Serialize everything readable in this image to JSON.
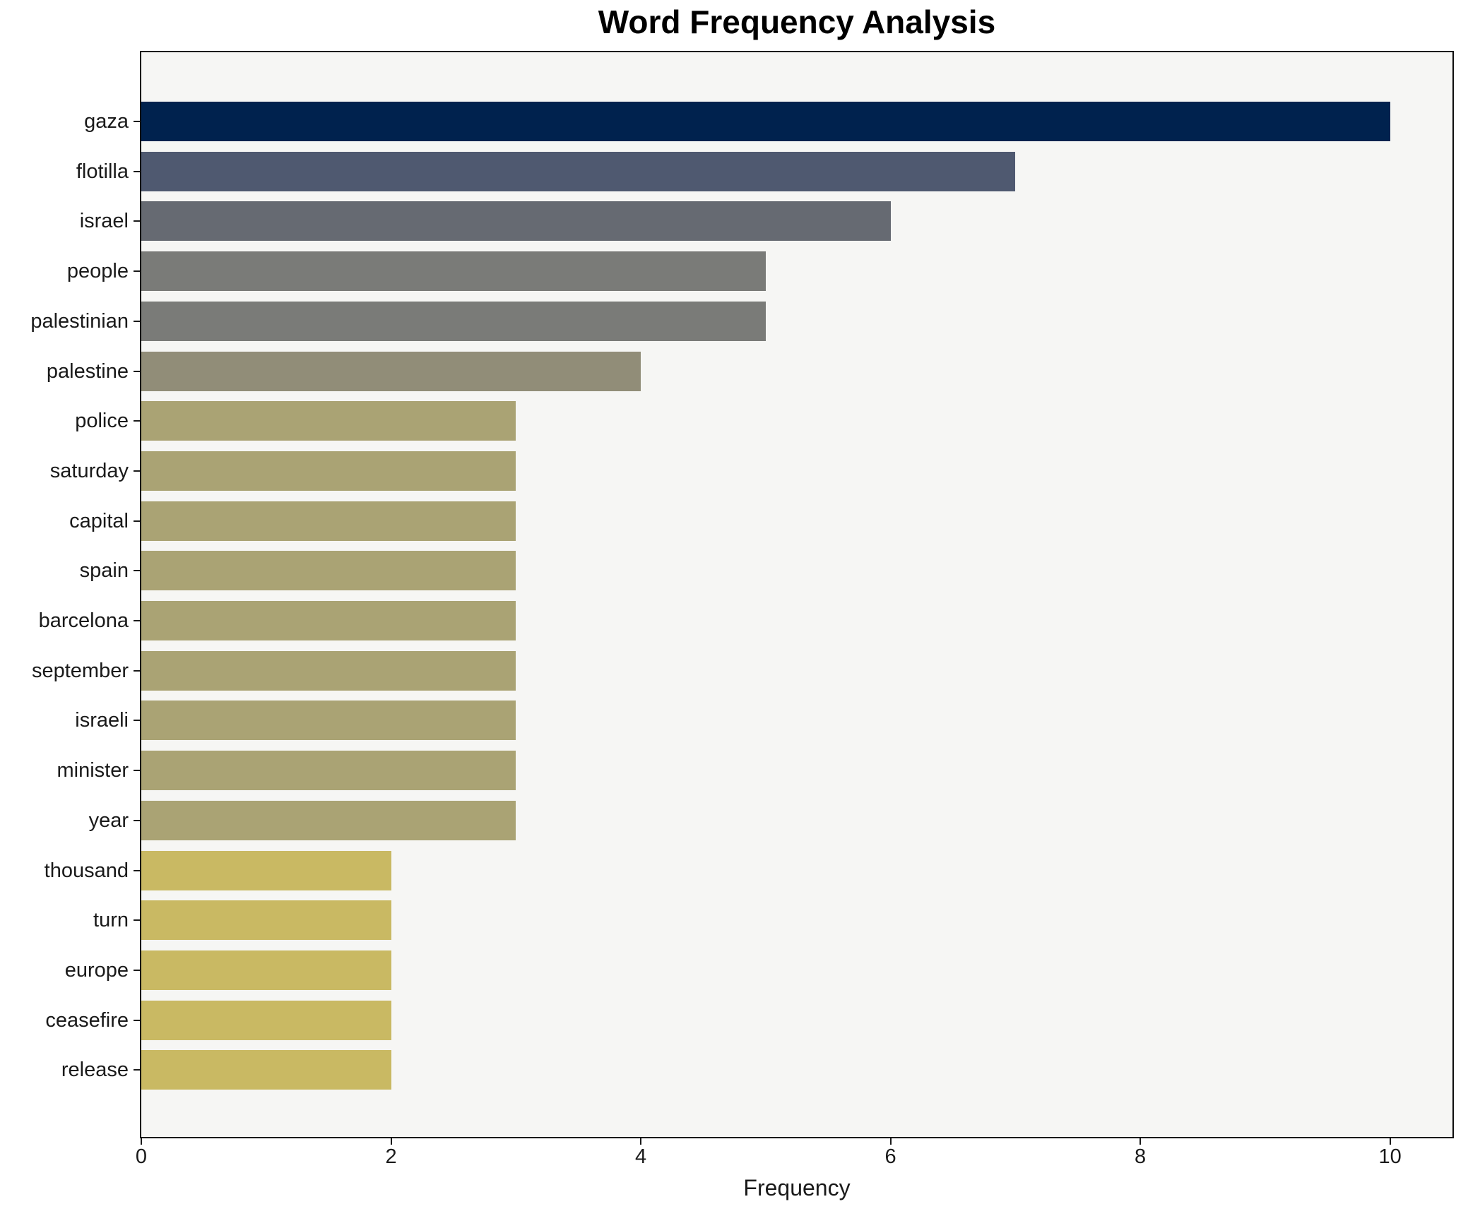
{
  "chart_data": {
    "type": "bar",
    "orientation": "horizontal",
    "title": "Word Frequency Analysis",
    "xlabel": "Frequency",
    "ylabel": "",
    "categories": [
      "gaza",
      "flotilla",
      "israel",
      "people",
      "palestinian",
      "palestine",
      "police",
      "saturday",
      "capital",
      "spain",
      "barcelona",
      "september",
      "israeli",
      "minister",
      "year",
      "thousand",
      "turn",
      "europe",
      "ceasefire",
      "release"
    ],
    "values": [
      10,
      7,
      6,
      5,
      5,
      4,
      3,
      3,
      3,
      3,
      3,
      3,
      3,
      3,
      3,
      2,
      2,
      2,
      2,
      2
    ],
    "bar_colors": [
      "#00224e",
      "#4f5970",
      "#666a72",
      "#7a7b78",
      "#7a7b78",
      "#918d78",
      "#aaa374",
      "#aaa374",
      "#aaa374",
      "#aaa374",
      "#aaa374",
      "#aaa374",
      "#aaa374",
      "#aaa374",
      "#aaa374",
      "#c9b963",
      "#c9b963",
      "#c9b963",
      "#c9b963",
      "#c9b963"
    ],
    "x_ticks": [
      "0",
      "2",
      "4",
      "6",
      "8",
      "10"
    ],
    "x_tick_values": [
      0,
      2,
      4,
      6,
      8,
      10
    ],
    "xlim": [
      0,
      10.5
    ],
    "grid": false,
    "legend": null,
    "colors": {
      "plot_background": "#f6f6f4",
      "figure_background": "#ffffff",
      "spine": "#0d0d0d",
      "text": "#1a1a1a"
    }
  }
}
